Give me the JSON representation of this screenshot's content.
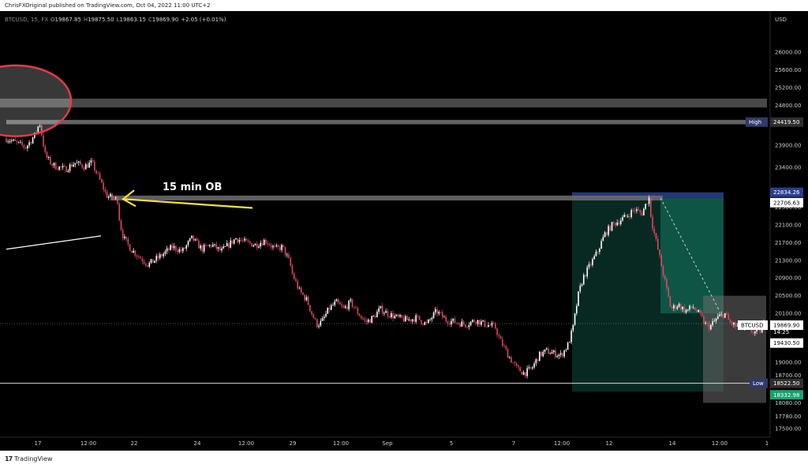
{
  "header": {
    "published": "ChrisFXOriginal published on TradingView.com, Oct 04, 2022 11:00 UTC+2"
  },
  "footer": {
    "brand": "TradingView",
    "logo_glyph": "17"
  },
  "legend": {
    "symbol": "BTCUSD, 15, FX",
    "open_key": "O",
    "open": "19867.85",
    "high_key": "H",
    "high": "19875.50",
    "low_key": "L",
    "low": "19863.15",
    "close_key": "C",
    "close": "19869.90",
    "change": "+2.05 (+0.01%)"
  },
  "annotations": {
    "ob_label": "15 min OB"
  },
  "colors": {
    "background": "#000000",
    "up_candle": "#ffffff",
    "down_candle": "#e0485f",
    "arrow": "#f5e23a",
    "ellipse_stroke": "#e23b4a",
    "zone_green": "#0f5a4a",
    "zone_grey": "#6b6b6b",
    "tag_blue": "#2a3f8f",
    "tag_green": "#1aa070",
    "ob_band": "#6e6e6e"
  },
  "chart_data": {
    "type": "candlestick",
    "currency": "USD",
    "timeframe": "15",
    "ylim": [
      17500,
      26400
    ],
    "y_ticks": [
      "26000.00",
      "25600.00",
      "25200.00",
      "24800.00",
      "24419.50",
      "23900.00",
      "23400.00",
      "22834.26",
      "22706.63",
      "22500.00",
      "22100.00",
      "21700.00",
      "21300.00",
      "20900.00",
      "20500.00",
      "20100.00",
      "19869.90",
      "19430.50",
      "19000.00",
      "18700.00",
      "18522.50",
      "18332.98",
      "18080.00",
      "17780.00",
      "17500.00"
    ],
    "x_ticks": [
      "17",
      "12:00",
      "22",
      "24",
      "12:00",
      "29",
      "12:00",
      "Sep",
      "5",
      "7",
      "12:00",
      "12",
      "14",
      "12:00",
      "1"
    ],
    "levels": {
      "high": 24419.5,
      "low": 18522.5,
      "last": 19869.9,
      "ob": 22706.63,
      "position_entry": 22706.63,
      "position_target": 18332.98,
      "position_stop": 22834.26
    },
    "price_tags": {
      "high_label": "High",
      "high_value": "24419.50",
      "low_label": "Low",
      "low_value": "18522.50",
      "symbol_label": "BTCUSD",
      "last_value": "19869.90",
      "countdown": "14:25",
      "stop_value": "22834.26",
      "entry_value": "22706.63",
      "target_value": "18332.98",
      "inner_value": "19430.50"
    },
    "path": [
      [
        0,
        24050
      ],
      [
        0.02,
        23950
      ],
      [
        0.04,
        23850
      ],
      [
        0.06,
        24150
      ],
      [
        0.068,
        24419.5
      ],
      [
        0.08,
        23650
      ],
      [
        0.095,
        23450
      ],
      [
        0.12,
        23350
      ],
      [
        0.14,
        23500
      ],
      [
        0.16,
        23420
      ],
      [
        0.175,
        23500
      ],
      [
        0.19,
        23150
      ],
      [
        0.205,
        22760
      ],
      [
        0.22,
        22700
      ],
      [
        0.228,
        22650
      ],
      [
        0.232,
        22150
      ],
      [
        0.24,
        21800
      ],
      [
        0.255,
        21550
      ],
      [
        0.27,
        21400
      ],
      [
        0.29,
        21200
      ],
      [
        0.31,
        21350
      ],
      [
        0.34,
        21600
      ],
      [
        0.36,
        21500
      ],
      [
        0.38,
        21800
      ],
      [
        0.4,
        21550
      ],
      [
        0.42,
        21650
      ],
      [
        0.44,
        21500
      ],
      [
        0.47,
        21800
      ],
      [
        0.49,
        21700
      ],
      [
        0.51,
        21650
      ],
      [
        0.53,
        21750
      ],
      [
        0.55,
        21550
      ],
      [
        0.565,
        21600
      ],
      [
        0.58,
        21250
      ],
      [
        0.585,
        21000
      ],
      [
        0.6,
        20600
      ],
      [
        0.615,
        20400
      ],
      [
        0.625,
        20100
      ],
      [
        0.635,
        19850
      ],
      [
        0.645,
        19900
      ],
      [
        0.66,
        20200
      ],
      [
        0.675,
        20350
      ],
      [
        0.69,
        20200
      ],
      [
        0.705,
        20350
      ],
      [
        0.72,
        20100
      ],
      [
        0.735,
        19900
      ],
      [
        0.75,
        20000
      ],
      [
        0.765,
        20200
      ],
      [
        0.78,
        20100
      ],
      [
        0.8,
        20000
      ],
      [
        0.82,
        19950
      ],
      [
        0.84,
        20000
      ],
      [
        0.86,
        19850
      ],
      [
        0.88,
        20150
      ],
      [
        0.89,
        20050
      ],
      [
        0.9,
        19950
      ],
      [
        0.92,
        19900
      ],
      [
        0.94,
        19850
      ],
      [
        0.96,
        19950
      ],
      [
        0.98,
        19850
      ],
      [
        1.0,
        19800
      ],
      [
        1.01,
        19500
      ],
      [
        1.02,
        19300
      ],
      [
        1.03,
        19100
      ],
      [
        1.045,
        18850
      ],
      [
        1.06,
        18750
      ],
      [
        1.075,
        18850
      ],
      [
        1.09,
        19150
      ],
      [
        1.105,
        19250
      ],
      [
        1.12,
        19200
      ],
      [
        1.135,
        19150
      ],
      [
        1.15,
        19400
      ],
      [
        1.16,
        19800
      ],
      [
        1.17,
        20500
      ],
      [
        1.18,
        20900
      ],
      [
        1.195,
        21200
      ],
      [
        1.21,
        21500
      ],
      [
        1.225,
        21900
      ],
      [
        1.24,
        22100
      ],
      [
        1.255,
        22200
      ],
      [
        1.27,
        22300
      ],
      [
        1.285,
        22450
      ],
      [
        1.3,
        22350
      ],
      [
        1.315,
        22720
      ],
      [
        1.32,
        22200
      ],
      [
        1.33,
        21700
      ],
      [
        1.34,
        21200
      ],
      [
        1.35,
        20700
      ],
      [
        1.36,
        20200
      ],
      [
        1.375,
        20300
      ],
      [
        1.39,
        20150
      ],
      [
        1.405,
        20250
      ],
      [
        1.42,
        20050
      ],
      [
        1.43,
        19850
      ],
      [
        1.44,
        19800
      ],
      [
        1.455,
        20000
      ],
      [
        1.47,
        20100
      ],
      [
        1.48,
        19900
      ],
      [
        1.495,
        19800
      ],
      [
        1.51,
        19750
      ],
      [
        1.525,
        19700
      ],
      [
        1.54,
        19650
      ],
      [
        1.55,
        19870
      ]
    ]
  }
}
